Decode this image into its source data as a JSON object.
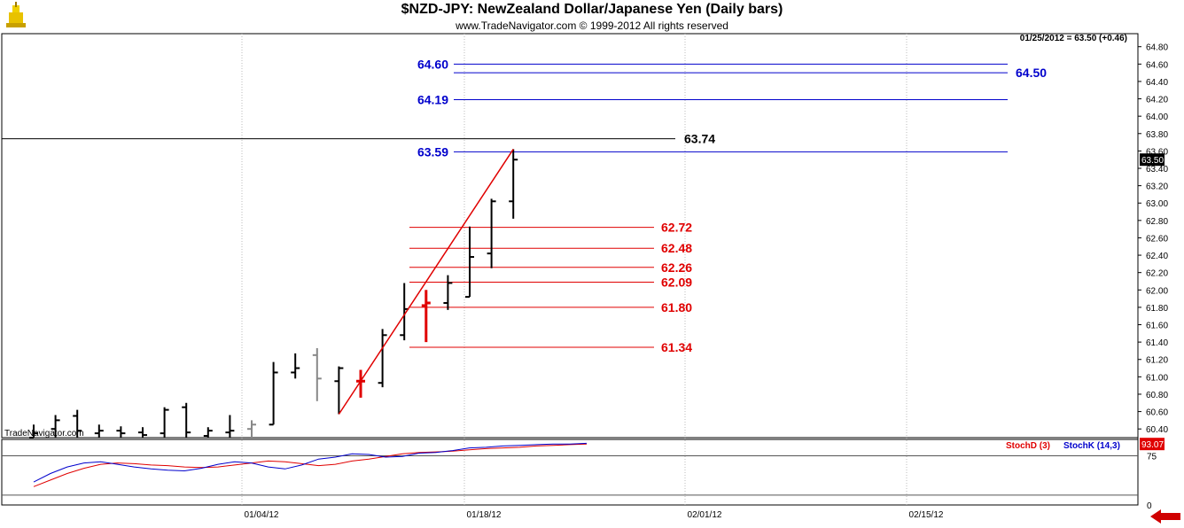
{
  "header": {
    "title": "$NZD-JPY:  NewZealand Dollar/Japanese Yen  (Daily bars)",
    "copyright": "www.TradeNavigator.com © 1999-2012 All rights reserved",
    "last_info": "01/25/2012 = 63.50 (+0.46)",
    "watermark": "TradeNavigator.com"
  },
  "colors": {
    "blue": "#0000cc",
    "red": "#e00000",
    "black": "#000000",
    "gray": "#888888"
  },
  "chart_data": [
    {
      "type": "bar",
      "subtype": "ohlc",
      "title": "$NZD-JPY:  NewZealand Dollar/Japanese Yen  (Daily bars)",
      "ylim": [
        60.3,
        64.95
      ],
      "x_ticks": [
        "01/04/12",
        "01/18/12",
        "02/01/12",
        "02/15/12"
      ],
      "y_ticks": [
        "60.40",
        "60.60",
        "60.80",
        "61.00",
        "61.20",
        "61.40",
        "61.60",
        "61.80",
        "62.00",
        "62.20",
        "62.40",
        "62.60",
        "62.80",
        "63.00",
        "63.20",
        "63.40",
        "63.60",
        "63.80",
        "64.00",
        "64.20",
        "64.40",
        "64.60",
        "64.80"
      ],
      "last_price": "63.50",
      "bars": [
        {
          "o": 60.3,
          "h": 60.45,
          "l": 60.3,
          "c": 60.35,
          "color": "black"
        },
        {
          "o": 60.4,
          "h": 60.56,
          "l": 60.3,
          "c": 60.5,
          "color": "black"
        },
        {
          "o": 60.55,
          "h": 60.62,
          "l": 60.3,
          "c": 60.38,
          "color": "black"
        },
        {
          "o": 60.35,
          "h": 60.45,
          "l": 60.3,
          "c": 60.38,
          "color": "black"
        },
        {
          "o": 60.38,
          "h": 60.43,
          "l": 60.3,
          "c": 60.35,
          "color": "black"
        },
        {
          "o": 60.36,
          "h": 60.42,
          "l": 60.3,
          "c": 60.33,
          "color": "black"
        },
        {
          "o": 60.35,
          "h": 60.65,
          "l": 60.3,
          "c": 60.62,
          "color": "black"
        },
        {
          "o": 60.65,
          "h": 60.7,
          "l": 60.3,
          "c": 60.36,
          "color": "black"
        },
        {
          "o": 60.32,
          "h": 60.42,
          "l": 60.3,
          "c": 60.38,
          "color": "black"
        },
        {
          "o": 60.36,
          "h": 60.56,
          "l": 60.3,
          "c": 60.38,
          "color": "black"
        },
        {
          "o": 60.4,
          "h": 60.5,
          "l": 60.3,
          "c": 60.45,
          "color": "gray"
        },
        {
          "o": 60.45,
          "h": 61.17,
          "l": 60.45,
          "c": 61.05,
          "color": "black"
        },
        {
          "o": 61.05,
          "h": 61.27,
          "l": 60.98,
          "c": 61.1,
          "color": "black"
        },
        {
          "o": 61.25,
          "h": 61.33,
          "l": 60.72,
          "c": 60.98,
          "color": "gray"
        },
        {
          "o": 60.95,
          "h": 61.12,
          "l": 60.57,
          "c": 61.1,
          "color": "black"
        },
        {
          "o": 60.95,
          "h": 61.08,
          "l": 60.76,
          "c": 60.95,
          "color": "red"
        },
        {
          "o": 60.93,
          "h": 61.55,
          "l": 60.88,
          "c": 61.48,
          "color": "black"
        },
        {
          "o": 61.48,
          "h": 62.08,
          "l": 61.42,
          "c": 61.78,
          "color": "black"
        },
        {
          "o": 61.82,
          "h": 62.0,
          "l": 61.4,
          "c": 61.85,
          "color": "red"
        },
        {
          "o": 61.85,
          "h": 62.17,
          "l": 61.77,
          "c": 62.08,
          "color": "black"
        },
        {
          "o": 61.92,
          "h": 62.73,
          "l": 61.92,
          "c": 62.38,
          "color": "black"
        },
        {
          "o": 62.42,
          "h": 63.05,
          "l": 62.25,
          "c": 63.02,
          "color": "black"
        },
        {
          "o": 63.02,
          "h": 63.62,
          "l": 62.82,
          "c": 63.5,
          "color": "black"
        }
      ],
      "retracement_levels": [
        {
          "value": 62.72,
          "label": "62.72"
        },
        {
          "value": 62.48,
          "label": "62.48"
        },
        {
          "value": 62.26,
          "label": "62.26"
        },
        {
          "value": 62.09,
          "label": "62.09"
        },
        {
          "value": 61.8,
          "label": "61.80"
        },
        {
          "value": 61.34,
          "label": "61.34"
        }
      ],
      "projection_levels": [
        {
          "value": 64.6,
          "label": "64.60",
          "side": "left"
        },
        {
          "value": 64.5,
          "label": "64.50",
          "side": "right"
        },
        {
          "value": 64.19,
          "label": "64.19",
          "side": "left"
        },
        {
          "value": 63.59,
          "label": "63.59",
          "side": "left"
        }
      ],
      "resistance_line": {
        "value": 63.74,
        "label": "63.74"
      },
      "trend_line": {
        "from_bar": 14,
        "from_value": 60.57,
        "to_bar": 22,
        "to_value": 63.62
      }
    },
    {
      "type": "line",
      "title": "Stochastics",
      "ylim": [
        0,
        100
      ],
      "y_ticks": [
        "75",
        "0"
      ],
      "last_value": "93.07",
      "series": [
        {
          "name": "StochD (3)",
          "color": "#e00000",
          "values": [
            28,
            38,
            48,
            56,
            62,
            64,
            63,
            61,
            60,
            58,
            57,
            58,
            61,
            64,
            67,
            66,
            63,
            60,
            62,
            67,
            70,
            74,
            78,
            80,
            81,
            82,
            84,
            86,
            87,
            88,
            90,
            91,
            92,
            93
          ]
        },
        {
          "name": "StochK (14,3)",
          "color": "#0000cc",
          "values": [
            35,
            48,
            58,
            64,
            66,
            62,
            58,
            55,
            53,
            52,
            56,
            62,
            66,
            64,
            58,
            55,
            61,
            70,
            73,
            78,
            77,
            73,
            74,
            79,
            80,
            83,
            87,
            88,
            90,
            91,
            92,
            93,
            93,
            94
          ]
        }
      ]
    }
  ]
}
